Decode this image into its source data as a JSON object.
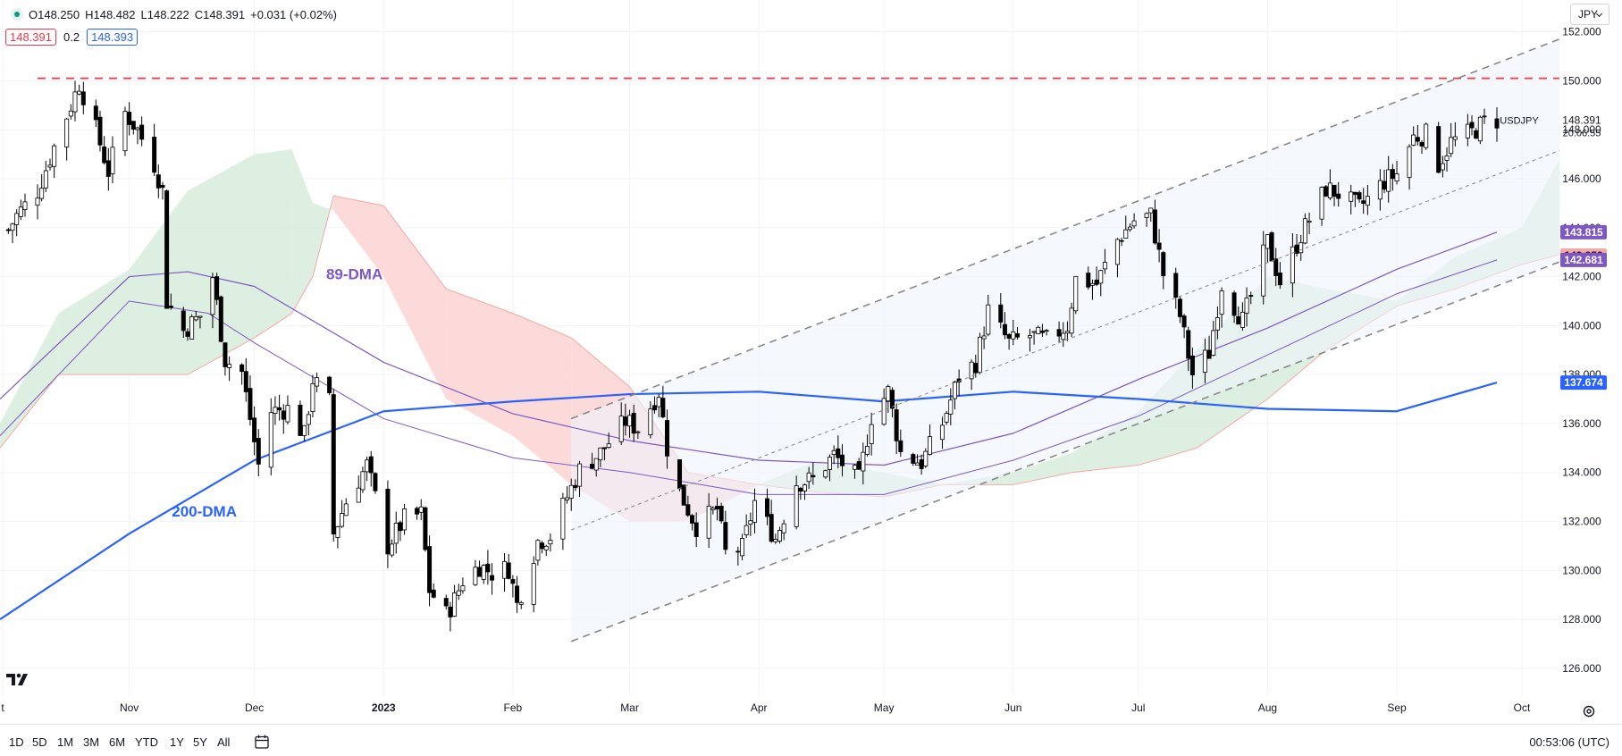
{
  "header": {
    "open": "O148.250",
    "high": "H148.482",
    "low": "L148.222",
    "close": "C148.391",
    "change": "+0.031 (+0.02%)",
    "bid": "148.391",
    "spread": "0.2",
    "ask": "148.393"
  },
  "currency": "JPY",
  "symbol_label": "USDJPY",
  "countdown": "20:06:55",
  "clock": "00:53:06 (UTC)",
  "ranges": [
    "1D",
    "5D",
    "1M",
    "3M",
    "6M",
    "YTD",
    "1Y",
    "5Y",
    "All"
  ],
  "colors": {
    "up": "#ffffff",
    "down": "#000000",
    "ma200": "#2962ff",
    "ma89": "#7e57c2",
    "cloud_bull": "#d7ecdc",
    "cloud_bear": "#fbd4d2",
    "resistance": "#f23645",
    "channel": "#888888"
  },
  "chart_data": {
    "type": "candlestick",
    "symbol": "USDJPY",
    "y_axis": {
      "ticks": [
        "152.000",
        "150.000",
        "148.000",
        "146.000",
        "144.000",
        "142.000",
        "140.000",
        "138.000",
        "136.000",
        "134.000",
        "132.000",
        "130.000",
        "128.000",
        "126.000"
      ],
      "range": [
        124.9,
        153.3
      ]
    },
    "x_axis": {
      "ticks": [
        {
          "label": "t",
          "date": "2022-10-01"
        },
        {
          "label": "Nov",
          "date": "2022-11-01"
        },
        {
          "label": "Dec",
          "date": "2022-12-01"
        },
        {
          "label": "2023",
          "date": "2023-01-01"
        },
        {
          "label": "Feb",
          "date": "2023-02-01"
        },
        {
          "label": "Mar",
          "date": "2023-03-01"
        },
        {
          "label": "Apr",
          "date": "2023-04-01"
        },
        {
          "label": "May",
          "date": "2023-05-01"
        },
        {
          "label": "Jun",
          "date": "2023-06-01"
        },
        {
          "label": "Jul",
          "date": "2023-07-01"
        },
        {
          "label": "Aug",
          "date": "2023-08-01"
        },
        {
          "label": "Sep",
          "date": "2023-09-01"
        },
        {
          "label": "Oct",
          "date": "2023-10-01"
        }
      ],
      "range": [
        "2022-10-01",
        "2023-10-10"
      ]
    },
    "price_tags": [
      {
        "value": 148.391,
        "label": "148.391",
        "style": "plain"
      },
      {
        "value": 143.815,
        "label": "143.815",
        "color": "#7e57c2"
      },
      {
        "value": 142.859,
        "label": "142.859",
        "color": "#f5a9a4"
      },
      {
        "value": 142.681,
        "label": "142.681",
        "color": "#7e57c2"
      },
      {
        "value": 137.674,
        "label": "137.674",
        "color": "#2962ff"
      }
    ],
    "close_path": [
      [
        "2022-10-01",
        143.3
      ],
      [
        "2022-10-05",
        144.5
      ],
      [
        "2022-10-10",
        145.5
      ],
      [
        "2022-10-14",
        147.3
      ],
      [
        "2022-10-18",
        149.0
      ],
      [
        "2022-10-20",
        149.9
      ],
      [
        "2022-10-24",
        148.0
      ],
      [
        "2022-10-27",
        146.3
      ],
      [
        "2022-10-31",
        148.7
      ],
      [
        "2022-11-03",
        148.0
      ],
      [
        "2022-11-07",
        146.6
      ],
      [
        "2022-11-09",
        145.5
      ],
      [
        "2022-11-10",
        141.0
      ],
      [
        "2022-11-14",
        139.8
      ],
      [
        "2022-11-18",
        140.4
      ],
      [
        "2022-11-21",
        142.0
      ],
      [
        "2022-11-24",
        138.6
      ],
      [
        "2022-11-28",
        138.1
      ],
      [
        "2022-12-02",
        134.3
      ],
      [
        "2022-12-05",
        136.5
      ],
      [
        "2022-12-09",
        136.6
      ],
      [
        "2022-12-13",
        135.5
      ],
      [
        "2022-12-15",
        137.8
      ],
      [
        "2022-12-19",
        136.9
      ],
      [
        "2022-12-20",
        131.5
      ],
      [
        "2022-12-23",
        132.8
      ],
      [
        "2022-12-28",
        134.3
      ],
      [
        "2023-01-02",
        131.0
      ],
      [
        "2023-01-06",
        132.1
      ],
      [
        "2023-01-10",
        132.3
      ],
      [
        "2023-01-12",
        129.2
      ],
      [
        "2023-01-16",
        128.2
      ],
      [
        "2023-01-18",
        128.8
      ],
      [
        "2023-01-20",
        129.6
      ],
      [
        "2023-01-24",
        130.2
      ],
      [
        "2023-01-27",
        129.9
      ],
      [
        "2023-01-31",
        130.1
      ],
      [
        "2023-02-02",
        128.6
      ],
      [
        "2023-02-07",
        131.2
      ],
      [
        "2023-02-10",
        131.4
      ],
      [
        "2023-02-14",
        133.0
      ],
      [
        "2023-02-17",
        134.1
      ],
      [
        "2023-02-22",
        134.8
      ],
      [
        "2023-02-28",
        136.1
      ],
      [
        "2023-03-03",
        135.8
      ],
      [
        "2023-03-08",
        137.3
      ],
      [
        "2023-03-10",
        135.0
      ],
      [
        "2023-03-13",
        133.2
      ],
      [
        "2023-03-17",
        131.8
      ],
      [
        "2023-03-22",
        132.5
      ],
      [
        "2023-03-24",
        130.7
      ],
      [
        "2023-03-28",
        130.9
      ],
      [
        "2023-03-31",
        132.8
      ],
      [
        "2023-04-05",
        131.3
      ],
      [
        "2023-04-10",
        133.6
      ],
      [
        "2023-04-14",
        133.7
      ],
      [
        "2023-04-19",
        134.7
      ],
      [
        "2023-04-25",
        133.7
      ],
      [
        "2023-04-28",
        136.3
      ],
      [
        "2023-05-02",
        137.3
      ],
      [
        "2023-05-05",
        134.8
      ],
      [
        "2023-05-10",
        134.4
      ],
      [
        "2023-05-15",
        136.0
      ],
      [
        "2023-05-19",
        137.9
      ],
      [
        "2023-05-23",
        138.5
      ],
      [
        "2023-05-26",
        140.6
      ],
      [
        "2023-05-31",
        139.3
      ],
      [
        "2023-06-05",
        139.6
      ],
      [
        "2023-06-09",
        139.4
      ],
      [
        "2023-06-14",
        140.0
      ],
      [
        "2023-06-16",
        141.9
      ],
      [
        "2023-06-21",
        141.7
      ],
      [
        "2023-06-26",
        143.5
      ],
      [
        "2023-06-30",
        144.3
      ],
      [
        "2023-07-04",
        144.5
      ],
      [
        "2023-07-07",
        142.1
      ],
      [
        "2023-07-11",
        140.4
      ],
      [
        "2023-07-14",
        138.0
      ],
      [
        "2023-07-18",
        138.9
      ],
      [
        "2023-07-21",
        141.7
      ],
      [
        "2023-07-26",
        140.2
      ],
      [
        "2023-07-28",
        141.2
      ],
      [
        "2023-08-01",
        143.4
      ],
      [
        "2023-08-04",
        141.8
      ],
      [
        "2023-08-09",
        143.7
      ],
      [
        "2023-08-15",
        145.6
      ],
      [
        "2023-08-18",
        145.4
      ],
      [
        "2023-08-23",
        144.8
      ],
      [
        "2023-08-29",
        145.9
      ],
      [
        "2023-09-01",
        146.2
      ],
      [
        "2023-09-05",
        147.7
      ],
      [
        "2023-09-08",
        147.8
      ],
      [
        "2023-09-11",
        146.6
      ],
      [
        "2023-09-14",
        147.5
      ],
      [
        "2023-09-19",
        147.9
      ],
      [
        "2023-09-22",
        148.3
      ],
      [
        "2023-09-25",
        148.4
      ]
    ],
    "ma200": {
      "label": "200-DMA",
      "points": [
        [
          "2022-10-01",
          128.0
        ],
        [
          "2022-11-01",
          131.5
        ],
        [
          "2022-12-01",
          134.5
        ],
        [
          "2023-01-01",
          136.5
        ],
        [
          "2023-02-01",
          136.9
        ],
        [
          "2023-03-01",
          137.2
        ],
        [
          "2023-04-01",
          137.3
        ],
        [
          "2023-05-01",
          136.9
        ],
        [
          "2023-06-01",
          137.3
        ],
        [
          "2023-07-01",
          137.0
        ],
        [
          "2023-08-01",
          136.6
        ],
        [
          "2023-09-01",
          136.5
        ],
        [
          "2023-09-25",
          137.674
        ]
      ]
    },
    "ma89": {
      "label": "89-DMA",
      "points": [
        [
          "2022-10-01",
          137.0
        ],
        [
          "2022-11-01",
          142.0
        ],
        [
          "2022-11-15",
          142.2
        ],
        [
          "2022-12-01",
          141.6
        ],
        [
          "2023-01-01",
          138.5
        ],
        [
          "2023-02-01",
          136.4
        ],
        [
          "2023-03-01",
          135.3
        ],
        [
          "2023-04-01",
          134.5
        ],
        [
          "2023-05-01",
          134.3
        ],
        [
          "2023-06-01",
          135.6
        ],
        [
          "2023-07-01",
          137.8
        ],
        [
          "2023-08-01",
          139.9
        ],
        [
          "2023-09-01",
          142.3
        ],
        [
          "2023-09-25",
          143.815
        ]
      ]
    },
    "ma_thin": {
      "points": [
        [
          "2022-10-01",
          135.5
        ],
        [
          "2022-11-01",
          141.0
        ],
        [
          "2022-11-20",
          140.5
        ],
        [
          "2022-12-01",
          139.3
        ],
        [
          "2023-01-01",
          136.2
        ],
        [
          "2023-02-01",
          134.6
        ],
        [
          "2023-03-01",
          134.0
        ],
        [
          "2023-04-01",
          133.1
        ],
        [
          "2023-05-01",
          133.1
        ],
        [
          "2023-06-01",
          134.5
        ],
        [
          "2023-07-01",
          136.3
        ],
        [
          "2023-08-01",
          138.8
        ],
        [
          "2023-09-01",
          141.3
        ],
        [
          "2023-09-25",
          142.681
        ]
      ]
    },
    "ichimoku_cloud": [
      {
        "date": "2022-10-01",
        "a": 136.0,
        "b": 135.0
      },
      {
        "date": "2022-10-15",
        "a": 140.5,
        "b": 138.0
      },
      {
        "date": "2022-11-01",
        "a": 142.3,
        "b": 138.0
      },
      {
        "date": "2022-11-15",
        "a": 145.5,
        "b": 138.0
      },
      {
        "date": "2022-12-01",
        "a": 147.0,
        "b": 139.5
      },
      {
        "date": "2022-12-10",
        "a": 147.2,
        "b": 140.5
      },
      {
        "date": "2022-12-15",
        "a": 145.0,
        "b": 142.0
      },
      {
        "date": "2022-12-20",
        "a": 144.7,
        "b": 145.3
      },
      {
        "date": "2023-01-01",
        "a": 142.0,
        "b": 144.9
      },
      {
        "date": "2023-01-16",
        "a": 137.0,
        "b": 141.5
      },
      {
        "date": "2023-02-01",
        "a": 135.5,
        "b": 140.5
      },
      {
        "date": "2023-02-15",
        "a": 133.5,
        "b": 139.5
      },
      {
        "date": "2023-03-01",
        "a": 132.0,
        "b": 137.5
      },
      {
        "date": "2023-03-15",
        "a": 132.0,
        "b": 134.0
      },
      {
        "date": "2023-04-01",
        "a": 133.5,
        "b": 133.5
      },
      {
        "date": "2023-04-15",
        "a": 134.5,
        "b": 133.2
      },
      {
        "date": "2023-05-01",
        "a": 134.0,
        "b": 133.0
      },
      {
        "date": "2023-05-15",
        "a": 133.5,
        "b": 133.5
      },
      {
        "date": "2023-06-01",
        "a": 134.0,
        "b": 133.5
      },
      {
        "date": "2023-06-15",
        "a": 134.8,
        "b": 134.0
      },
      {
        "date": "2023-07-01",
        "a": 136.5,
        "b": 134.3
      },
      {
        "date": "2023-07-15",
        "a": 139.0,
        "b": 135.0
      },
      {
        "date": "2023-08-01",
        "a": 142.0,
        "b": 137.0
      },
      {
        "date": "2023-08-15",
        "a": 141.5,
        "b": 139.0
      },
      {
        "date": "2023-09-01",
        "a": 141.0,
        "b": 140.8
      },
      {
        "date": "2023-09-15",
        "a": 142.8,
        "b": 141.5
      },
      {
        "date": "2023-10-01",
        "a": 144.0,
        "b": 142.5
      },
      {
        "date": "2023-10-10",
        "a": 146.8,
        "b": 142.9
      }
    ],
    "resistance": {
      "value": 150.1,
      "from": "2022-10-10",
      "to": "2023-10-10"
    },
    "channel": {
      "upper": [
        [
          "2023-02-15",
          136.2
        ],
        [
          "2023-10-10",
          151.7
        ]
      ],
      "lower": [
        [
          "2023-02-15",
          127.1
        ],
        [
          "2023-10-10",
          142.6
        ]
      ],
      "mid": [
        [
          "2023-02-15",
          131.65
        ],
        [
          "2023-10-10",
          147.15
        ]
      ]
    },
    "annotations": [
      {
        "text": "89-DMA",
        "date": "2022-12-25",
        "value": 141.9,
        "color": "#7e57c2"
      },
      {
        "text": "200-DMA",
        "date": "2022-11-19",
        "value": 132.2,
        "color": "#2962ff"
      }
    ]
  }
}
